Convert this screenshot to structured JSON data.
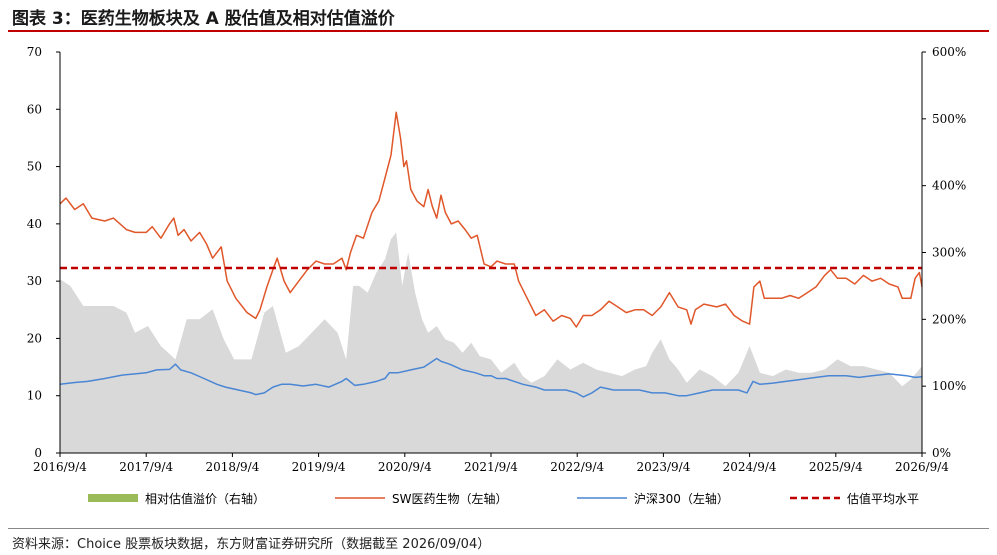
{
  "header": {
    "title": "图表 3：医药生物板块及 A 股估值及相对估值溢价"
  },
  "footer": {
    "source": "资料来源：Choice 股票板块数据，东方财富证券研究所（数据截至 2026/09/04）"
  },
  "colors": {
    "relative": "#d9d9d9",
    "relative_legend": "#9bbb59",
    "sw": "#e0572a",
    "hs300": "#4a86d4",
    "avg": "#c00000",
    "title_rule": "#c00000"
  },
  "legend": [
    {
      "label": "相对估值溢价（右轴）"
    },
    {
      "label": "SW医药生物（左轴）"
    },
    {
      "label": "沪深300（左轴）"
    },
    {
      "label": "估值平均水平"
    }
  ],
  "chart_data": {
    "type": "line",
    "x_ticks": [
      "2016/9/4",
      "2017/9/4",
      "2018/9/4",
      "2019/9/4",
      "2020/9/4",
      "2021/9/4",
      "2022/9/4",
      "2023/9/4",
      "2024/9/4",
      "2025/9/4",
      "2026/9/4"
    ],
    "y_left": {
      "ticks": [
        "0",
        "10",
        "20",
        "30",
        "40",
        "50",
        "60",
        "70"
      ],
      "lim": [
        0,
        70
      ]
    },
    "y_right": {
      "ticks": [
        "0%",
        "100%",
        "200%",
        "300%",
        "400%",
        "500%",
        "600%"
      ],
      "lim": [
        0,
        600
      ]
    },
    "grid": false,
    "legend_position": "bottom",
    "series": [
      {
        "name": "SW医药生物（左轴）",
        "axis": "left",
        "kind": "line",
        "points": [
          [
            2016.68,
            43.5
          ],
          [
            2016.75,
            44.5
          ],
          [
            2016.85,
            42.5
          ],
          [
            2016.95,
            43.5
          ],
          [
            2017.05,
            41
          ],
          [
            2017.2,
            40.5
          ],
          [
            2017.3,
            41
          ],
          [
            2017.45,
            39
          ],
          [
            2017.55,
            38.5
          ],
          [
            2017.68,
            38.5
          ],
          [
            2017.75,
            39.5
          ],
          [
            2017.85,
            37.5
          ],
          [
            2017.95,
            40
          ],
          [
            2018.0,
            41
          ],
          [
            2018.05,
            38
          ],
          [
            2018.12,
            39
          ],
          [
            2018.2,
            37
          ],
          [
            2018.3,
            38.5
          ],
          [
            2018.38,
            36.5
          ],
          [
            2018.45,
            34
          ],
          [
            2018.55,
            36
          ],
          [
            2018.62,
            30
          ],
          [
            2018.72,
            27
          ],
          [
            2018.85,
            24.5
          ],
          [
            2018.95,
            23.5
          ],
          [
            2019.0,
            25
          ],
          [
            2019.08,
            29
          ],
          [
            2019.15,
            32
          ],
          [
            2019.2,
            34
          ],
          [
            2019.28,
            30
          ],
          [
            2019.35,
            28
          ],
          [
            2019.45,
            30
          ],
          [
            2019.55,
            32
          ],
          [
            2019.65,
            33.5
          ],
          [
            2019.75,
            33
          ],
          [
            2019.85,
            33
          ],
          [
            2019.95,
            34
          ],
          [
            2020.0,
            32
          ],
          [
            2020.05,
            35
          ],
          [
            2020.12,
            38
          ],
          [
            2020.2,
            37.5
          ],
          [
            2020.3,
            42
          ],
          [
            2020.38,
            44
          ],
          [
            2020.45,
            48
          ],
          [
            2020.52,
            52
          ],
          [
            2020.58,
            59.5
          ],
          [
            2020.63,
            55
          ],
          [
            2020.67,
            50
          ],
          [
            2020.7,
            51
          ],
          [
            2020.75,
            46
          ],
          [
            2020.82,
            44
          ],
          [
            2020.9,
            43
          ],
          [
            2020.95,
            46
          ],
          [
            2021.0,
            43
          ],
          [
            2021.05,
            41
          ],
          [
            2021.1,
            45
          ],
          [
            2021.15,
            42
          ],
          [
            2021.22,
            40
          ],
          [
            2021.3,
            40.5
          ],
          [
            2021.38,
            39
          ],
          [
            2021.45,
            37.5
          ],
          [
            2021.52,
            38
          ],
          [
            2021.6,
            33
          ],
          [
            2021.68,
            32.5
          ],
          [
            2021.75,
            33.5
          ],
          [
            2021.85,
            33
          ],
          [
            2021.95,
            33
          ],
          [
            2022.0,
            30
          ],
          [
            2022.1,
            27
          ],
          [
            2022.2,
            24
          ],
          [
            2022.3,
            25
          ],
          [
            2022.4,
            23
          ],
          [
            2022.5,
            24
          ],
          [
            2022.6,
            23.5
          ],
          [
            2022.67,
            22
          ],
          [
            2022.75,
            24
          ],
          [
            2022.85,
            24
          ],
          [
            2022.95,
            25
          ],
          [
            2023.05,
            26.5
          ],
          [
            2023.15,
            25.5
          ],
          [
            2023.25,
            24.5
          ],
          [
            2023.35,
            25
          ],
          [
            2023.45,
            25
          ],
          [
            2023.55,
            24
          ],
          [
            2023.65,
            25.5
          ],
          [
            2023.75,
            28
          ],
          [
            2023.85,
            25.5
          ],
          [
            2023.95,
            25
          ],
          [
            2024.0,
            22.5
          ],
          [
            2024.05,
            25
          ],
          [
            2024.15,
            26
          ],
          [
            2024.3,
            25.5
          ],
          [
            2024.4,
            26
          ],
          [
            2024.5,
            24
          ],
          [
            2024.6,
            23
          ],
          [
            2024.68,
            22.5
          ],
          [
            2024.73,
            29
          ],
          [
            2024.8,
            30
          ],
          [
            2024.85,
            27
          ],
          [
            2024.95,
            27
          ],
          [
            2025.05,
            27
          ],
          [
            2025.15,
            27.5
          ],
          [
            2025.25,
            27
          ],
          [
            2025.35,
            28
          ],
          [
            2025.45,
            29
          ],
          [
            2025.55,
            31
          ],
          [
            2025.62,
            32
          ],
          [
            2025.7,
            30.5
          ],
          [
            2025.8,
            30.5
          ],
          [
            2025.9,
            29.5
          ],
          [
            2026.0,
            31
          ],
          [
            2026.1,
            30
          ],
          [
            2026.2,
            30.5
          ],
          [
            2026.3,
            29.5
          ],
          [
            2026.4,
            29
          ],
          [
            2026.45,
            27
          ],
          [
            2026.55,
            27
          ],
          [
            2026.6,
            30.5
          ],
          [
            2026.65,
            31.5
          ],
          [
            2026.68,
            29
          ]
        ]
      },
      {
        "name": "沪深300（左轴）",
        "axis": "left",
        "kind": "line",
        "points": [
          [
            2016.68,
            12
          ],
          [
            2016.85,
            12.3
          ],
          [
            2017.0,
            12.5
          ],
          [
            2017.2,
            13
          ],
          [
            2017.4,
            13.6
          ],
          [
            2017.55,
            13.8
          ],
          [
            2017.68,
            14
          ],
          [
            2017.8,
            14.5
          ],
          [
            2017.95,
            14.6
          ],
          [
            2018.02,
            15.5
          ],
          [
            2018.08,
            14.5
          ],
          [
            2018.2,
            14
          ],
          [
            2018.35,
            13
          ],
          [
            2018.5,
            12
          ],
          [
            2018.6,
            11.5
          ],
          [
            2018.75,
            11
          ],
          [
            2018.9,
            10.5
          ],
          [
            2018.95,
            10.2
          ],
          [
            2019.05,
            10.5
          ],
          [
            2019.15,
            11.5
          ],
          [
            2019.25,
            12
          ],
          [
            2019.35,
            12
          ],
          [
            2019.5,
            11.7
          ],
          [
            2019.65,
            12
          ],
          [
            2019.8,
            11.5
          ],
          [
            2019.95,
            12.5
          ],
          [
            2020.0,
            13
          ],
          [
            2020.1,
            11.8
          ],
          [
            2020.2,
            12
          ],
          [
            2020.35,
            12.5
          ],
          [
            2020.45,
            13
          ],
          [
            2020.5,
            14
          ],
          [
            2020.6,
            14
          ],
          [
            2020.75,
            14.5
          ],
          [
            2020.9,
            15
          ],
          [
            2021.05,
            16.5
          ],
          [
            2021.1,
            16
          ],
          [
            2021.2,
            15.5
          ],
          [
            2021.35,
            14.5
          ],
          [
            2021.5,
            14
          ],
          [
            2021.6,
            13.5
          ],
          [
            2021.68,
            13.5
          ],
          [
            2021.75,
            13
          ],
          [
            2021.85,
            13
          ],
          [
            2021.95,
            12.5
          ],
          [
            2022.05,
            12
          ],
          [
            2022.2,
            11.5
          ],
          [
            2022.3,
            11
          ],
          [
            2022.45,
            11
          ],
          [
            2022.55,
            11
          ],
          [
            2022.67,
            10.5
          ],
          [
            2022.75,
            9.8
          ],
          [
            2022.85,
            10.5
          ],
          [
            2022.95,
            11.5
          ],
          [
            2023.1,
            11
          ],
          [
            2023.25,
            11
          ],
          [
            2023.4,
            11
          ],
          [
            2023.55,
            10.5
          ],
          [
            2023.7,
            10.5
          ],
          [
            2023.85,
            10
          ],
          [
            2023.95,
            10
          ],
          [
            2024.1,
            10.5
          ],
          [
            2024.25,
            11
          ],
          [
            2024.4,
            11
          ],
          [
            2024.55,
            11
          ],
          [
            2024.65,
            10.5
          ],
          [
            2024.72,
            12.5
          ],
          [
            2024.8,
            12
          ],
          [
            2024.95,
            12.2
          ],
          [
            2025.1,
            12.5
          ],
          [
            2025.25,
            12.8
          ],
          [
            2025.45,
            13.2
          ],
          [
            2025.6,
            13.5
          ],
          [
            2025.8,
            13.5
          ],
          [
            2025.95,
            13.2
          ],
          [
            2026.1,
            13.5
          ],
          [
            2026.3,
            13.8
          ],
          [
            2026.5,
            13.5
          ],
          [
            2026.6,
            13.2
          ],
          [
            2026.68,
            13.3
          ]
        ]
      },
      {
        "name": "相对估值溢价（右轴）",
        "axis": "right",
        "kind": "area",
        "points": [
          [
            2016.68,
            260
          ],
          [
            2016.8,
            250
          ],
          [
            2016.95,
            220
          ],
          [
            2017.1,
            220
          ],
          [
            2017.3,
            220
          ],
          [
            2017.45,
            210
          ],
          [
            2017.55,
            180
          ],
          [
            2017.7,
            190
          ],
          [
            2017.85,
            160
          ],
          [
            2018.02,
            140
          ],
          [
            2018.15,
            200
          ],
          [
            2018.3,
            200
          ],
          [
            2018.45,
            215
          ],
          [
            2018.58,
            170
          ],
          [
            2018.7,
            140
          ],
          [
            2018.9,
            140
          ],
          [
            2019.05,
            210
          ],
          [
            2019.15,
            220
          ],
          [
            2019.3,
            150
          ],
          [
            2019.45,
            160
          ],
          [
            2019.6,
            180
          ],
          [
            2019.75,
            200
          ],
          [
            2019.9,
            180
          ],
          [
            2020.0,
            140
          ],
          [
            2020.08,
            250
          ],
          [
            2020.15,
            250
          ],
          [
            2020.25,
            240
          ],
          [
            2020.35,
            270
          ],
          [
            2020.45,
            290
          ],
          [
            2020.52,
            320
          ],
          [
            2020.58,
            330
          ],
          [
            2020.65,
            250
          ],
          [
            2020.72,
            300
          ],
          [
            2020.8,
            240
          ],
          [
            2020.88,
            200
          ],
          [
            2020.95,
            180
          ],
          [
            2021.05,
            190
          ],
          [
            2021.15,
            170
          ],
          [
            2021.25,
            165
          ],
          [
            2021.35,
            150
          ],
          [
            2021.45,
            165
          ],
          [
            2021.55,
            145
          ],
          [
            2021.68,
            140
          ],
          [
            2021.8,
            120
          ],
          [
            2021.95,
            135
          ],
          [
            2022.05,
            115
          ],
          [
            2022.15,
            105
          ],
          [
            2022.3,
            115
          ],
          [
            2022.45,
            140
          ],
          [
            2022.6,
            125
          ],
          [
            2022.75,
            135
          ],
          [
            2022.9,
            125
          ],
          [
            2023.05,
            120
          ],
          [
            2023.2,
            115
          ],
          [
            2023.35,
            125
          ],
          [
            2023.48,
            130
          ],
          [
            2023.55,
            150
          ],
          [
            2023.65,
            170
          ],
          [
            2023.75,
            140
          ],
          [
            2023.85,
            125
          ],
          [
            2023.95,
            105
          ],
          [
            2024.1,
            125
          ],
          [
            2024.25,
            115
          ],
          [
            2024.4,
            100
          ],
          [
            2024.55,
            120
          ],
          [
            2024.68,
            160
          ],
          [
            2024.8,
            120
          ],
          [
            2024.95,
            115
          ],
          [
            2025.1,
            125
          ],
          [
            2025.25,
            120
          ],
          [
            2025.4,
            120
          ],
          [
            2025.55,
            125
          ],
          [
            2025.7,
            140
          ],
          [
            2025.85,
            130
          ],
          [
            2026.0,
            130
          ],
          [
            2026.15,
            125
          ],
          [
            2026.3,
            120
          ],
          [
            2026.45,
            100
          ],
          [
            2026.55,
            110
          ],
          [
            2026.68,
            130
          ]
        ]
      },
      {
        "name": "估值平均水平",
        "axis": "left",
        "kind": "dashed",
        "points": [
          [
            2016.68,
            32.3
          ],
          [
            2026.68,
            32.3
          ]
        ]
      }
    ]
  }
}
